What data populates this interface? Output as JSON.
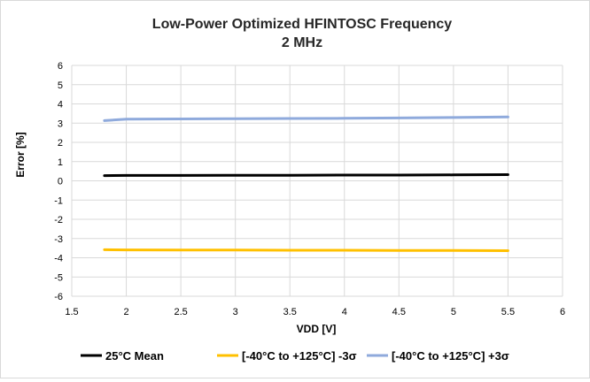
{
  "chart_data": {
    "type": "line",
    "title": "Low-Power Optimized HFINTOSC Frequency",
    "subtitle": "2 MHz",
    "xlabel": "VDD [V]",
    "ylabel": "Error [%]",
    "xlim": [
      1.5,
      6
    ],
    "ylim": [
      -6,
      6
    ],
    "x_ticks": [
      "1.5",
      "2",
      "2.5",
      "3",
      "3.5",
      "4",
      "4.5",
      "5",
      "5.5",
      "6"
    ],
    "y_ticks": [
      "6",
      "5",
      "4",
      "3",
      "2",
      "1",
      "0",
      "-1",
      "-2",
      "-3",
      "-4",
      "-5",
      "-6"
    ],
    "grid": true,
    "legend_position": "bottom",
    "x": [
      1.8,
      2.0,
      2.5,
      3.0,
      3.5,
      4.0,
      4.5,
      5.0,
      5.5
    ],
    "series": [
      {
        "name": "25°C Mean",
        "color": "#000000",
        "values": [
          0.27,
          0.28,
          0.28,
          0.29,
          0.29,
          0.3,
          0.3,
          0.31,
          0.32
        ]
      },
      {
        "name": "[-40°C to +125°C]  -3σ",
        "color": "#ffc000",
        "values": [
          -3.58,
          -3.59,
          -3.6,
          -3.6,
          -3.61,
          -3.61,
          -3.62,
          -3.62,
          -3.63
        ]
      },
      {
        "name": "[-40°C to +125°C] +3σ",
        "color": "#8faadc",
        "values": [
          3.13,
          3.21,
          3.22,
          3.23,
          3.24,
          3.25,
          3.27,
          3.29,
          3.32
        ]
      }
    ]
  }
}
